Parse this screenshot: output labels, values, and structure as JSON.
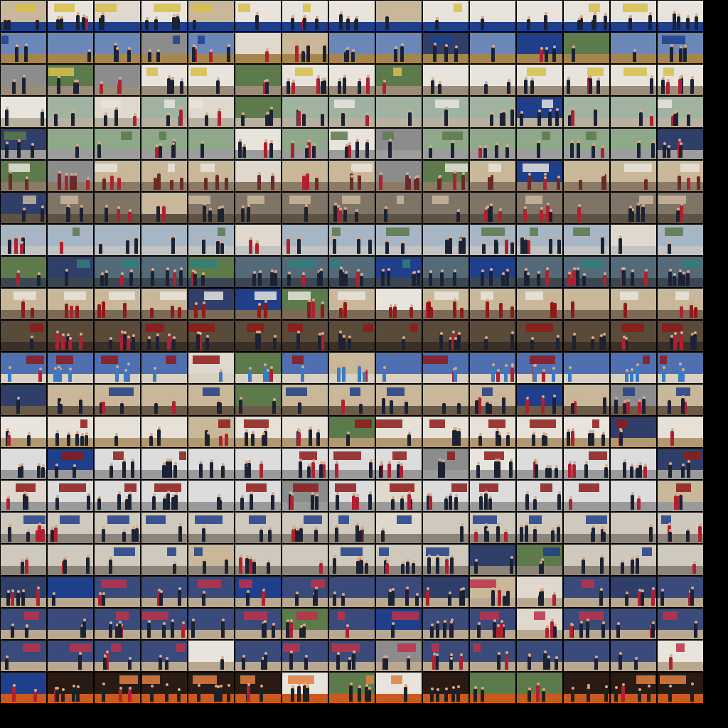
{
  "sheet": {
    "background": "#000000",
    "columns": 15,
    "rows": 22,
    "palette": {
      "warm_interior": "#c9b79a",
      "white_wall": "#e8e4dc",
      "blue_banner": "#1f3f8a",
      "red_curtain": "#8e1a1a",
      "green_outdoor": "#5d7a4a",
      "dark_stage": "#2a1a14",
      "grey_bw": "#8c8c8c",
      "wood_floor": "#a5864f",
      "suit_dark": "#1c2233",
      "skin": "#d9a98a"
    },
    "row_themes": [
      "ceremony-podium",
      "hall-gathering",
      "podium-and-studio",
      "outdoor-and-gallery",
      "outdoor-group",
      "gallery-meeting",
      "gallery-crowd",
      "outdoor-walk",
      "lobby-crowd",
      "portrait-and-lobby",
      "gallery-speech",
      "stage-banner",
      "lobby-and-podium",
      "podium-speech",
      "award-presentation",
      "award-presentation",
      "exhibition-visit",
      "exhibition-visit",
      "exhibition-table",
      "exhibition-table",
      "exhibition-table",
      "performance-stage"
    ]
  }
}
